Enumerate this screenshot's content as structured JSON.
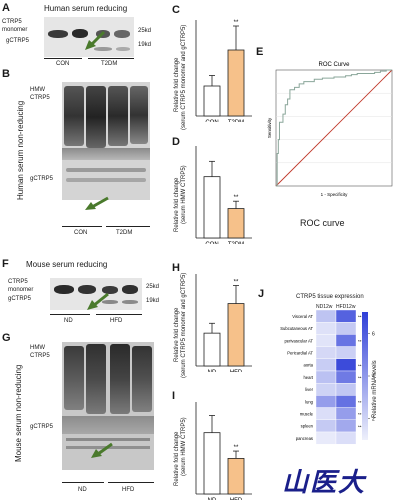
{
  "panels": {
    "A": {
      "letter": "A",
      "title": "Human serum reducing",
      "label_monomer": "CTRP5\nmonomer",
      "label_g": "gCTRP5",
      "kd_top": "25kd",
      "kd_bottom": "19kd",
      "group1": "CON",
      "group2": "T2DM"
    },
    "B": {
      "letter": "B",
      "side_title": "Human serum non-reducing",
      "label_hmw": "HMW\nCTRP5",
      "label_g": "gCTRP5",
      "group1": "CON",
      "group2": "T2DM"
    },
    "C": {
      "letter": "C",
      "ylabel1": "Relative fold change",
      "ylabel2": "(serum CTRP5 monomer and gCTRP5)",
      "sig": "**"
    },
    "D": {
      "letter": "D",
      "ylabel1": "Relative fold change",
      "ylabel2": "(serum HMW CTRP5)",
      "sig": "**"
    },
    "E": {
      "letter": "E",
      "title": "ROC Curve",
      "xlabel": "1 - Specificity",
      "ylabel": "Sensitivity",
      "caption": "ROC curve"
    },
    "F": {
      "letter": "F",
      "title": "Mouse serum reducing",
      "label_monomer": "CTRP5\nmonomer",
      "label_g": "gCTRP5",
      "kd_top": "25kd",
      "kd_bottom": "19kd",
      "group1": "ND",
      "group2": "HFD"
    },
    "G": {
      "letter": "G",
      "side_title": "Mouse serum non-reducing",
      "label_hmw": "HMW\nCTRP5",
      "label_g": "gCTRP5",
      "group1": "ND",
      "group2": "HFD"
    },
    "H": {
      "letter": "H",
      "ylabel1": "Relative fold change",
      "ylabel2": "(serum CTRP5 monomer and gCTRP5)",
      "sig": "**"
    },
    "I": {
      "letter": "I",
      "ylabel1": "Relative fold change",
      "ylabel2": "(serum HMW CTRP5)",
      "sig": "**"
    },
    "J": {
      "letter": "J",
      "title": "CTRP5 tissue expression",
      "col1": "ND12w",
      "col2": "HFD12w",
      "ylabel": "Relative mRNA levels",
      "rows": [
        "Visceral AT",
        "Subcutaneous AT",
        "perivascular AT",
        "Pericardial AT",
        "aorta",
        "heart",
        "liver",
        "lung",
        "muscle",
        "spleen",
        "pancreas"
      ],
      "sigs": [
        "**",
        "",
        "**",
        "",
        "**",
        "**",
        "",
        "**",
        "**",
        "**",
        ""
      ],
      "colorbar_ticks": [
        "6",
        "4",
        "2"
      ]
    }
  },
  "watermark": {
    "text": "山医大"
  },
  "colors": {
    "con_bar": "#ffffff",
    "t2dm_bar": "#f6c18a",
    "heat_low": "#eef0fb",
    "heat_high": "#2f3fd8",
    "roc_curve": "#8aa69a",
    "roc_ref": "#c0392b",
    "watermark": "#1a1f8a"
  },
  "chart_data": [
    {
      "id": "C",
      "type": "bar",
      "categories": [
        "CON",
        "T2DM"
      ],
      "values": [
        1.0,
        2.2
      ],
      "errors": [
        0.35,
        0.8
      ],
      "ylim": [
        0,
        3.2
      ],
      "ylabel": "Relative fold change (serum CTRP5 monomer and gCTRP5)",
      "significance": "**"
    },
    {
      "id": "D",
      "type": "bar",
      "categories": [
        "CON",
        "T2DM"
      ],
      "values": [
        1.0,
        0.48
      ],
      "errors": [
        0.25,
        0.12
      ],
      "ylim": [
        0,
        1.5
      ],
      "ylabel": "Relative fold change (serum HMW CTRP5)",
      "significance": "**"
    },
    {
      "id": "H",
      "type": "bar",
      "categories": [
        "ND",
        "HFD"
      ],
      "values": [
        1.0,
        1.9
      ],
      "errors": [
        0.3,
        0.55
      ],
      "ylim": [
        0,
        2.8
      ],
      "ylabel": "Relative fold change (serum CTRP5 monomer and gCTRP5)",
      "significance": "**"
    },
    {
      "id": "I",
      "type": "bar",
      "categories": [
        "ND",
        "HFD"
      ],
      "values": [
        1.0,
        0.58
      ],
      "errors": [
        0.28,
        0.12
      ],
      "ylim": [
        0,
        1.5
      ],
      "ylabel": "Relative fold change (serum HMW CTRP5)",
      "significance": "**"
    },
    {
      "id": "E",
      "type": "line",
      "title": "ROC Curve",
      "xlabel": "1 - Specificity",
      "ylabel": "Sensitivity",
      "x": [
        0,
        0.01,
        0.02,
        0.03,
        0.06,
        0.08,
        0.1,
        0.12,
        0.16,
        0.2,
        0.24,
        0.28,
        0.33,
        0.4,
        0.5,
        0.6,
        0.65,
        0.7,
        0.78,
        0.85,
        0.9,
        0.95,
        1.0
      ],
      "y": [
        0,
        0.28,
        0.4,
        0.55,
        0.62,
        0.7,
        0.75,
        0.83,
        0.85,
        0.88,
        0.9,
        0.9,
        0.92,
        0.93,
        0.94,
        0.95,
        0.96,
        0.97,
        0.97,
        0.98,
        0.99,
        1.0,
        1.0
      ],
      "reference_line": true
    },
    {
      "id": "J",
      "type": "heatmap",
      "title": "CTRP5 tissue expression",
      "columns": [
        "ND12w",
        "HFD12w"
      ],
      "rows": [
        "Visceral AT",
        "Subcutaneous AT",
        "perivascular AT",
        "Pericardial AT",
        "aorta",
        "heart",
        "liver",
        "lung",
        "muscle",
        "spleen",
        "pancreas"
      ],
      "values": [
        [
          2.5,
          5.8
        ],
        [
          1.5,
          2.3
        ],
        [
          1.4,
          5.2
        ],
        [
          1.8,
          2.1
        ],
        [
          2.2,
          6.6
        ],
        [
          2.6,
          5.0
        ],
        [
          2.0,
          2.4
        ],
        [
          3.8,
          5.3
        ],
        [
          1.6,
          3.8
        ],
        [
          2.3,
          3.4
        ],
        [
          1.2,
          1.6
        ]
      ],
      "colorbar_range": [
        1,
        7
      ],
      "colorbar_ticks": [
        6,
        4,
        2
      ]
    }
  ]
}
